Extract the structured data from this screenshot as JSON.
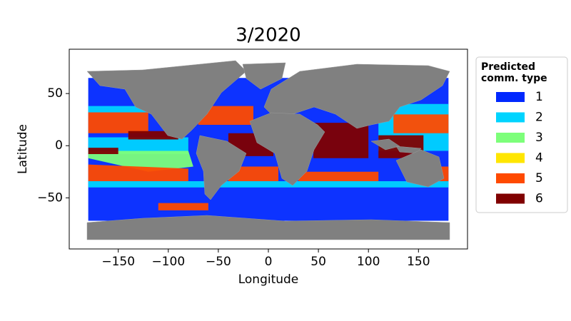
{
  "chart_data": {
    "type": "map",
    "title": "3/2020",
    "x_label": "Longitude",
    "y_label": "Latitude",
    "xlim": [
      -199,
      199
    ],
    "ylim": [
      -99,
      92.5
    ],
    "xticks": [
      {
        "value": -150,
        "label": "−150"
      },
      {
        "value": -100,
        "label": "−100"
      },
      {
        "value": -50,
        "label": "−50"
      },
      0,
      50,
      100,
      150
    ],
    "yticks": [
      {
        "value": -50,
        "label": "−50"
      },
      0,
      50
    ],
    "legend_title": [
      "Predicted",
      "comm. type"
    ],
    "legend": "outside right",
    "series": [
      {
        "name": "1",
        "color": "#0028ff",
        "regions": [
          {
            "x": [
              -180,
              180,
              180,
              -180
            ],
            "y": [
              -72,
              -72,
              65,
              65
            ]
          }
        ]
      },
      {
        "name": "2",
        "color": "#00d4ff",
        "regions": [
          {
            "x": [
              -180,
              -80,
              -80,
              -180
            ],
            "y": [
              -8,
              -8,
              8,
              8
            ]
          },
          {
            "x": [
              -180,
              180,
              180,
              -180
            ],
            "y": [
              -40,
              -40,
              -34,
              -34
            ]
          },
          {
            "x": [
              -180,
              -120,
              -120,
              -180
            ],
            "y": [
              32,
              32,
              38,
              38
            ]
          },
          {
            "x": [
              110,
              180,
              180,
              110
            ],
            "y": [
              -5,
              -5,
              40,
              40
            ]
          }
        ]
      },
      {
        "name": "3",
        "color": "#7dff7a",
        "regions": [
          {
            "x": [
              -180,
              -80,
              -75,
              -120,
              -180
            ],
            "y": [
              -5,
              -5,
              -20,
              -25,
              -12
            ]
          }
        ]
      },
      {
        "name": "4",
        "color": "#ffe600",
        "regions": []
      },
      {
        "name": "5",
        "color": "#ff4a00",
        "regions": [
          {
            "x": [
              -180,
              -120,
              -120,
              -180
            ],
            "y": [
              12,
              12,
              32,
              32
            ]
          },
          {
            "x": [
              -180,
              -80,
              -80,
              -180
            ],
            "y": [
              -18,
              -22,
              -34,
              -34
            ]
          },
          {
            "x": [
              -70,
              -15,
              -15,
              -70
            ],
            "y": [
              20,
              20,
              38,
              38
            ]
          },
          {
            "x": [
              -40,
              10,
              10,
              -40
            ],
            "y": [
              -20,
              -20,
              -34,
              -34
            ]
          },
          {
            "x": [
              30,
              110,
              110,
              30
            ],
            "y": [
              -25,
              -25,
              -34,
              -34
            ]
          },
          {
            "x": [
              125,
              180,
              180,
              125
            ],
            "y": [
              12,
              12,
              30,
              30
            ]
          },
          {
            "x": [
              150,
              180,
              180,
              150
            ],
            "y": [
              -20,
              -20,
              -34,
              -34
            ]
          },
          {
            "x": [
              -110,
              -60,
              -60,
              -110
            ],
            "y": [
              -55,
              -55,
              -62,
              -62
            ]
          }
        ]
      },
      {
        "name": "6",
        "color": "#800000",
        "regions": [
          {
            "x": [
              45,
              100,
              100,
              45
            ],
            "y": [
              -12,
              -12,
              22,
              22
            ]
          },
          {
            "x": [
              110,
              155,
              155,
              110
            ],
            "y": [
              -12,
              -12,
              10,
              10
            ]
          },
          {
            "x": [
              -40,
              5,
              5,
              -40
            ],
            "y": [
              -10,
              -10,
              12,
              12
            ]
          },
          {
            "x": [
              -140,
              -90,
              -90,
              -140
            ],
            "y": [
              6,
              6,
              14,
              14
            ]
          },
          {
            "x": [
              -180,
              -150,
              -150,
              -180
            ],
            "y": [
              -2,
              -2,
              -8,
              -8
            ]
          }
        ]
      }
    ]
  }
}
